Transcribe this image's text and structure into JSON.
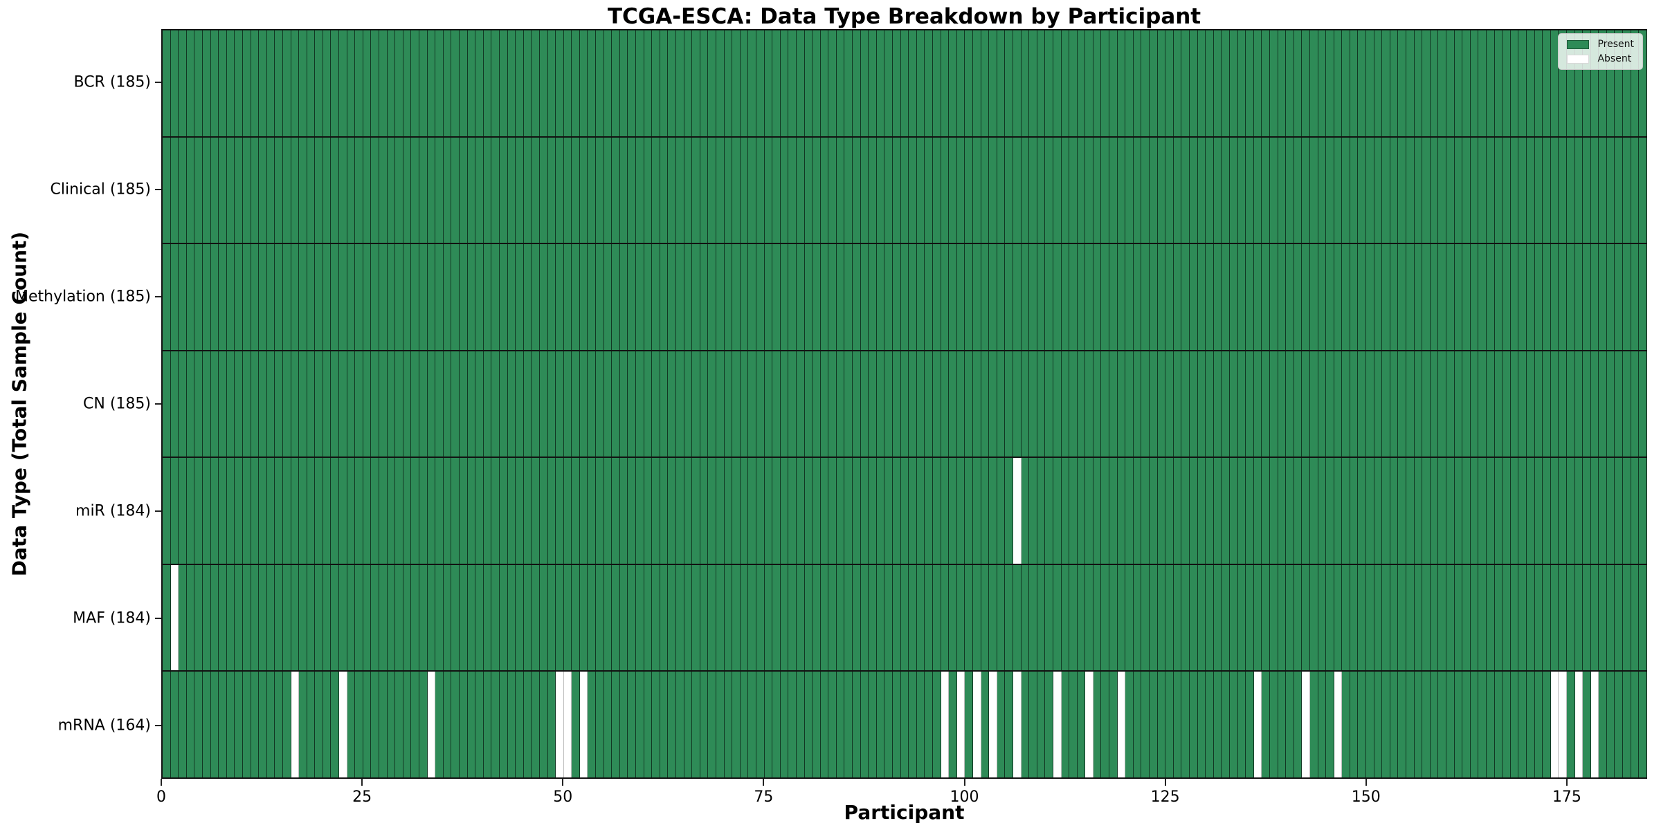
{
  "figure_title": "TCGA-ESCA: Data Type Breakdown by Participant",
  "chart_data": {
    "type": "heatmap",
    "title": "TCGA-ESCA: Data Type Breakdown by Participant",
    "xlabel": "Participant",
    "ylabel": "Data Type (Total Sample Count)",
    "n_participants": 185,
    "xlim": [
      0,
      185
    ],
    "x_ticks": [
      0,
      25,
      50,
      75,
      100,
      125,
      150,
      175
    ],
    "grid": false,
    "legend_position": "upper right",
    "cell_states": [
      "present",
      "absent"
    ],
    "colors": {
      "present": "#2E8B57",
      "absent": "#FFFFFF"
    },
    "rows": [
      {
        "data_type": "BCR",
        "label": "BCR (185)",
        "present_count": 185,
        "absent_count": 0,
        "absent_participant_indices": []
      },
      {
        "data_type": "Clinical",
        "label": "Clinical (185)",
        "present_count": 185,
        "absent_count": 0,
        "absent_participant_indices": []
      },
      {
        "data_type": "Methylation",
        "label": "Methylation (185)",
        "present_count": 185,
        "absent_count": 0,
        "absent_participant_indices": []
      },
      {
        "data_type": "CN",
        "label": "CN (185)",
        "present_count": 185,
        "absent_count": 0,
        "absent_participant_indices": []
      },
      {
        "data_type": "miR",
        "label": "miR (184)",
        "present_count": 184,
        "absent_count": 1,
        "absent_participant_indices": [
          106
        ]
      },
      {
        "data_type": "MAF",
        "label": "MAF (184)",
        "present_count": 184,
        "absent_count": 1,
        "absent_participant_indices": [
          1
        ]
      },
      {
        "data_type": "mRNA",
        "label": "mRNA (164)",
        "present_count": 164,
        "absent_count": 21,
        "absent_participant_indices": [
          16,
          22,
          33,
          49,
          50,
          52,
          97,
          99,
          101,
          103,
          106,
          111,
          115,
          119,
          136,
          142,
          146,
          173,
          174,
          176,
          178
        ]
      }
    ],
    "legend": [
      {
        "label": "Present",
        "color": "#2E8B57"
      },
      {
        "label": "Absent",
        "color": "#FFFFFF"
      }
    ]
  }
}
